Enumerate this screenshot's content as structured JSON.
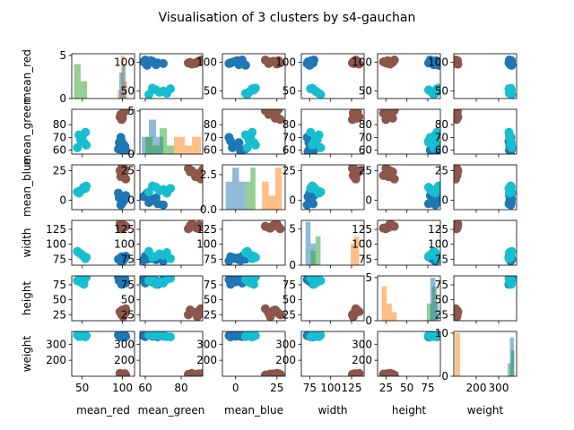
{
  "chart_data": {
    "type": "scatter",
    "title": "Visualisation of 3 clusters by s4-gauchan",
    "variables": [
      "mean_red",
      "mean_green",
      "mean_blue",
      "width",
      "height",
      "weight"
    ],
    "colors": {
      "cyan": "#17becf",
      "blue": "#1f77b4",
      "brown": "#8c564b",
      "hist_green": "#2ca02c",
      "hist_orange": "#ff7f0e",
      "hist_blue": "#1f77b4"
    },
    "axis_ranges": {
      "mean_red": [
        37,
        115
      ],
      "mean_green": [
        57,
        92
      ],
      "mean_blue": [
        -8,
        30
      ],
      "width": [
        65,
        140
      ],
      "height": [
        15,
        90
      ],
      "weight": [
        100,
        380
      ]
    },
    "ticks": {
      "mean_red": [
        50,
        100
      ],
      "mean_green": [
        60,
        80
      ],
      "mean_blue": [
        0,
        25
      ],
      "width": [
        75,
        100,
        125
      ],
      "height": [
        25,
        50,
        75
      ],
      "weight": [
        200,
        300
      ]
    },
    "y_ticks": {
      "mean_red": [
        50,
        100
      ],
      "mean_green": [
        60,
        70,
        80
      ],
      "mean_blue": [
        0,
        25
      ],
      "width": [
        75,
        100,
        125
      ],
      "height": [
        25,
        50,
        75
      ],
      "weight": [
        200,
        300
      ]
    },
    "x_ticks": {
      "mean_red": [
        50,
        100
      ],
      "mean_green": [
        60,
        80
      ],
      "mean_blue": [
        0,
        25
      ],
      "width": [
        75,
        100,
        125
      ],
      "height": [
        25,
        50,
        75
      ],
      "weight": [
        200,
        300
      ]
    },
    "clusters": [
      {
        "color": "brown",
        "points": [
          [
            98,
            88,
            20,
            128,
            28,
            110
          ],
          [
            102,
            90,
            23,
            132,
            32,
            115
          ],
          [
            99,
            84,
            27,
            126,
            25,
            112
          ],
          [
            104,
            91,
            18,
            130,
            35,
            108
          ],
          [
            97,
            86,
            25,
            134,
            30,
            118
          ],
          [
            101,
            89,
            21,
            127,
            22,
            114
          ],
          [
            100,
            85,
            24,
            131,
            33,
            111
          ],
          [
            103,
            92,
            26,
            129,
            27,
            116
          ]
        ]
      },
      {
        "color": "blue",
        "points": [
          [
            96,
            66,
            2,
            74,
            82,
            352
          ],
          [
            100,
            62,
            -2,
            78,
            86,
            356
          ],
          [
            104,
            60,
            4,
            80,
            78,
            348
          ],
          [
            98,
            70,
            -4,
            72,
            84,
            354
          ],
          [
            102,
            64,
            0,
            76,
            80,
            350
          ],
          [
            95,
            61,
            6,
            75,
            88,
            358
          ],
          [
            99,
            67,
            -3,
            79,
            76,
            346
          ],
          [
            101,
            59,
            3,
            73,
            83,
            353
          ],
          [
            103,
            63,
            1,
            77,
            85,
            357
          ]
        ]
      },
      {
        "color": "cyan",
        "points": [
          [
            48,
            68,
            8,
            84,
            80,
            352
          ],
          [
            52,
            66,
            11,
            80,
            76,
            356
          ],
          [
            46,
            72,
            6,
            86,
            84,
            348
          ],
          [
            55,
            64,
            12,
            78,
            88,
            354
          ],
          [
            50,
            70,
            9,
            82,
            78,
            350
          ],
          [
            44,
            62,
            7,
            88,
            82,
            358
          ],
          [
            54,
            74,
            10,
            76,
            86,
            346
          ]
        ]
      }
    ],
    "histograms": {
      "mean_red": {
        "ylim": [
          0,
          5.2
        ],
        "ticks": [
          0,
          5
        ],
        "bars": [
          {
            "color": "hist_green",
            "x0": 40,
            "x1": 48,
            "h": 4
          },
          {
            "color": "hist_green",
            "x0": 48,
            "x1": 56,
            "h": 2
          },
          {
            "color": "hist_orange",
            "x0": 94,
            "x1": 98,
            "h": 1
          },
          {
            "color": "hist_orange",
            "x0": 98,
            "x1": 102,
            "h": 5
          },
          {
            "color": "hist_orange",
            "x0": 102,
            "x1": 106,
            "h": 2
          },
          {
            "color": "hist_blue",
            "x0": 96,
            "x1": 100,
            "h": 3
          },
          {
            "color": "hist_blue",
            "x0": 100,
            "x1": 104,
            "h": 4
          }
        ]
      },
      "mean_green": {
        "ylim": [
          0,
          5.2
        ],
        "ticks": [
          0,
          5
        ],
        "bars": [
          {
            "color": "hist_blue",
            "x0": 58,
            "x1": 62,
            "h": 2
          },
          {
            "color": "hist_blue",
            "x0": 62,
            "x1": 66,
            "h": 4
          },
          {
            "color": "hist_blue",
            "x0": 66,
            "x1": 70,
            "h": 2
          },
          {
            "color": "hist_green",
            "x0": 60,
            "x1": 64,
            "h": 2
          },
          {
            "color": "hist_green",
            "x0": 64,
            "x1": 68,
            "h": 1
          },
          {
            "color": "hist_green",
            "x0": 68,
            "x1": 72,
            "h": 3
          },
          {
            "color": "hist_green",
            "x0": 72,
            "x1": 76,
            "h": 1
          },
          {
            "color": "hist_orange",
            "x0": 76,
            "x1": 82,
            "h": 2
          },
          {
            "color": "hist_orange",
            "x0": 82,
            "x1": 86,
            "h": 1
          },
          {
            "color": "hist_orange",
            "x0": 86,
            "x1": 91,
            "h": 2
          }
        ]
      },
      "mean_blue": {
        "ylim": [
          0,
          3.2
        ],
        "ticks": [
          0.0,
          2.5
        ],
        "tick_labels": [
          "0.0",
          "2.5"
        ],
        "bars": [
          {
            "color": "hist_blue",
            "x0": -6,
            "x1": -2,
            "h": 2
          },
          {
            "color": "hist_blue",
            "x0": -2,
            "x1": 2,
            "h": 3
          },
          {
            "color": "hist_blue",
            "x0": 2,
            "x1": 6,
            "h": 2
          },
          {
            "color": "hist_green",
            "x0": 6,
            "x1": 9,
            "h": 2
          },
          {
            "color": "hist_green",
            "x0": 9,
            "x1": 12,
            "h": 3
          },
          {
            "color": "hist_orange",
            "x0": 16,
            "x1": 20,
            "h": 2
          },
          {
            "color": "hist_orange",
            "x0": 20,
            "x1": 24,
            "h": 1
          },
          {
            "color": "hist_orange",
            "x0": 24,
            "x1": 28,
            "h": 3
          }
        ]
      },
      "width": {
        "ylim": [
          0,
          6.2
        ],
        "ticks": [
          0,
          5
        ],
        "bars": [
          {
            "color": "hist_blue",
            "x0": 70,
            "x1": 76,
            "h": 6
          },
          {
            "color": "hist_blue",
            "x0": 76,
            "x1": 82,
            "h": 3
          },
          {
            "color": "hist_green",
            "x0": 76,
            "x1": 82,
            "h": 2
          },
          {
            "color": "hist_green",
            "x0": 82,
            "x1": 88,
            "h": 4
          },
          {
            "color": "hist_orange",
            "x0": 124,
            "x1": 128,
            "h": 3
          },
          {
            "color": "hist_orange",
            "x0": 128,
            "x1": 134,
            "h": 4
          }
        ]
      },
      "height": {
        "ylim": [
          0,
          5.2
        ],
        "ticks": [
          0,
          5
        ],
        "bars": [
          {
            "color": "hist_orange",
            "x0": 20,
            "x1": 26,
            "h": 4
          },
          {
            "color": "hist_orange",
            "x0": 26,
            "x1": 32,
            "h": 2
          },
          {
            "color": "hist_orange",
            "x0": 32,
            "x1": 38,
            "h": 1
          },
          {
            "color": "hist_green",
            "x0": 74,
            "x1": 80,
            "h": 2
          },
          {
            "color": "hist_green",
            "x0": 80,
            "x1": 86,
            "h": 4
          },
          {
            "color": "hist_blue",
            "x0": 78,
            "x1": 84,
            "h": 5
          },
          {
            "color": "hist_blue",
            "x0": 84,
            "x1": 88,
            "h": 2
          }
        ]
      },
      "weight": {
        "ylim": [
          0,
          10.4
        ],
        "ticks": [
          0,
          10
        ],
        "bars": [
          {
            "color": "hist_orange",
            "x0": 105,
            "x1": 128,
            "h": 10
          },
          {
            "color": "hist_green",
            "x0": 340,
            "x1": 355,
            "h": 3
          },
          {
            "color": "hist_green",
            "x0": 355,
            "x1": 370,
            "h": 6
          },
          {
            "color": "hist_blue",
            "x0": 350,
            "x1": 368,
            "h": 9
          }
        ]
      }
    }
  }
}
